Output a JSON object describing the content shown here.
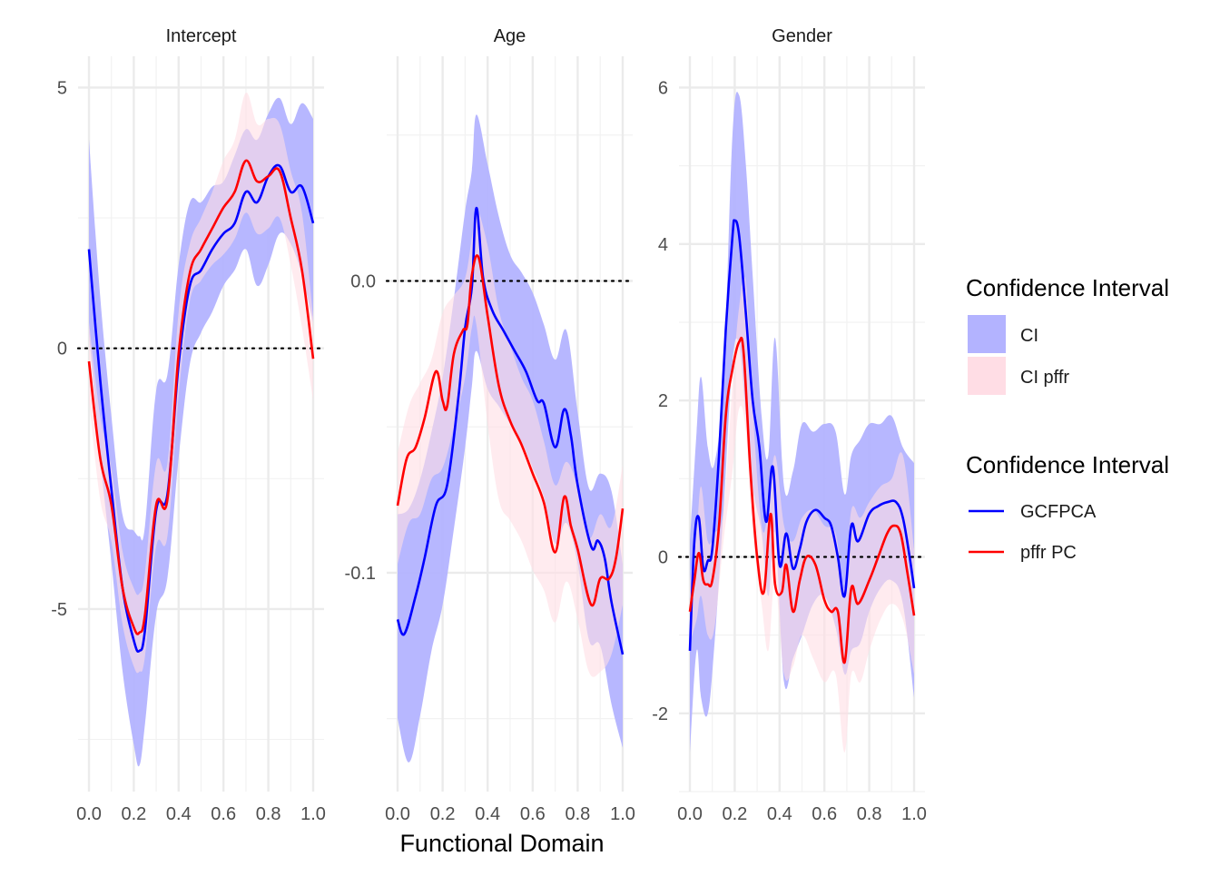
{
  "chart_data": [
    {
      "type": "line",
      "title": "Intercept",
      "xlim": [
        0,
        1
      ],
      "ylim": [
        -8.5,
        5.6
      ],
      "x_ticks": [
        "0.0",
        "0.2",
        "0.4",
        "0.6",
        "0.8",
        "1.0"
      ],
      "y_ticks": [
        5,
        0,
        -5
      ],
      "y_tick_labels": [
        "5",
        "0",
        "-5"
      ],
      "y_minor": [
        2.5,
        -2.5,
        -7.5
      ],
      "reference_line": 0,
      "series": [
        {
          "name": "GCFPCA",
          "color": "#0000ff",
          "x": [
            0,
            0.05,
            0.1,
            0.15,
            0.2,
            0.225,
            0.25,
            0.3,
            0.35,
            0.4,
            0.45,
            0.5,
            0.55,
            0.6,
            0.65,
            0.7,
            0.75,
            0.8,
            0.85,
            0.9,
            0.95,
            1.0
          ],
          "y": [
            1.9,
            -0.6,
            -2.7,
            -4.6,
            -5.6,
            -5.8,
            -5.4,
            -3.1,
            -2.8,
            -0.3,
            1.2,
            1.5,
            1.9,
            2.2,
            2.4,
            3.0,
            2.8,
            3.3,
            3.5,
            3.0,
            3.1,
            2.4
          ]
        },
        {
          "name": "pffr PC",
          "color": "#ff0000",
          "x": [
            0,
            0.05,
            0.1,
            0.15,
            0.2,
            0.225,
            0.25,
            0.3,
            0.35,
            0.4,
            0.45,
            0.5,
            0.55,
            0.6,
            0.65,
            0.7,
            0.75,
            0.8,
            0.85,
            0.9,
            0.95,
            1.0
          ],
          "y": [
            -0.25,
            -2.1,
            -3.0,
            -4.6,
            -5.35,
            -5.45,
            -5.1,
            -3.0,
            -2.9,
            -0.1,
            1.45,
            1.9,
            2.3,
            2.7,
            3.0,
            3.6,
            3.2,
            3.3,
            3.4,
            2.5,
            1.5,
            -0.2
          ]
        }
      ],
      "bands": [
        {
          "name": "CI",
          "color": "#b3b3ff",
          "x": [
            0,
            0.05,
            0.1,
            0.15,
            0.2,
            0.225,
            0.25,
            0.3,
            0.35,
            0.4,
            0.45,
            0.5,
            0.55,
            0.6,
            0.65,
            0.7,
            0.75,
            0.8,
            0.85,
            0.9,
            0.95,
            1.0
          ],
          "lower": [
            0.3,
            -2.1,
            -4.1,
            -6.2,
            -7.6,
            -8.0,
            -7.2,
            -5.1,
            -4.4,
            -2.1,
            -0.3,
            0.3,
            0.7,
            1.2,
            1.5,
            1.9,
            1.2,
            1.6,
            2.2,
            2.0,
            1.4,
            0.5
          ],
          "upper": [
            4.0,
            1.0,
            -1.3,
            -3.2,
            -3.5,
            -3.6,
            -3.4,
            -0.8,
            -0.5,
            1.6,
            2.8,
            2.8,
            3.1,
            3.2,
            3.7,
            4.2,
            4.0,
            4.5,
            4.8,
            4.3,
            4.7,
            4.4
          ]
        },
        {
          "name": "CI pffr",
          "color": "#ffdde5",
          "x": [
            0,
            0.05,
            0.1,
            0.15,
            0.2,
            0.225,
            0.25,
            0.3,
            0.35,
            0.4,
            0.45,
            0.5,
            0.55,
            0.6,
            0.65,
            0.7,
            0.75,
            0.8,
            0.85,
            0.9,
            0.95,
            1.0
          ],
          "lower": [
            -1.0,
            -2.9,
            -3.7,
            -5.3,
            -6.1,
            -6.2,
            -5.9,
            -3.8,
            -3.6,
            -0.9,
            0.9,
            1.3,
            1.6,
            1.8,
            2.1,
            2.6,
            2.2,
            2.3,
            2.5,
            1.6,
            0.4,
            -1.0
          ],
          "upper": [
            0.5,
            -1.3,
            -2.3,
            -3.9,
            -4.6,
            -4.7,
            -4.3,
            -2.2,
            -2.2,
            0.7,
            2.0,
            2.5,
            3.0,
            3.6,
            4.0,
            4.9,
            4.3,
            4.4,
            4.3,
            3.4,
            2.6,
            0.6
          ]
        }
      ]
    },
    {
      "type": "line",
      "title": "Age",
      "xlim": [
        0,
        1
      ],
      "ylim": [
        -0.175,
        0.077
      ],
      "x_ticks": [
        "0.0",
        "0.2",
        "0.4",
        "0.6",
        "0.8",
        "1.0"
      ],
      "y_ticks": [
        0.0,
        -0.1
      ],
      "y_tick_labels": [
        "0.0",
        "-0.1"
      ],
      "y_minor": [
        0.05,
        -0.05,
        -0.15
      ],
      "reference_line": 0,
      "series": [
        {
          "name": "GCFPCA",
          "color": "#0000ff",
          "x": [
            0,
            0.03,
            0.08,
            0.12,
            0.17,
            0.22,
            0.27,
            0.3,
            0.33,
            0.35,
            0.38,
            0.42,
            0.47,
            0.52,
            0.57,
            0.62,
            0.65,
            0.7,
            0.74,
            0.77,
            0.8,
            0.86,
            0.89,
            0.92,
            0.95,
            1.0
          ],
          "y": [
            -0.116,
            -0.121,
            -0.108,
            -0.095,
            -0.077,
            -0.07,
            -0.04,
            -0.016,
            -0.002,
            0.025,
            0.001,
            -0.01,
            -0.017,
            -0.024,
            -0.031,
            -0.041,
            -0.042,
            -0.057,
            -0.044,
            -0.053,
            -0.07,
            -0.091,
            -0.089,
            -0.095,
            -0.11,
            -0.128
          ]
        },
        {
          "name": "pffr PC",
          "color": "#ff0000",
          "x": [
            0,
            0.04,
            0.08,
            0.12,
            0.17,
            0.2,
            0.22,
            0.25,
            0.29,
            0.31,
            0.33,
            0.36,
            0.4,
            0.45,
            0.5,
            0.55,
            0.6,
            0.65,
            0.7,
            0.74,
            0.77,
            0.8,
            0.86,
            0.9,
            0.94,
            0.97,
            1.0
          ],
          "y": [
            -0.077,
            -0.061,
            -0.057,
            -0.047,
            -0.031,
            -0.041,
            -0.043,
            -0.025,
            -0.017,
            -0.015,
            0.002,
            0.008,
            -0.012,
            -0.036,
            -0.048,
            -0.056,
            -0.066,
            -0.076,
            -0.093,
            -0.074,
            -0.084,
            -0.092,
            -0.111,
            -0.102,
            -0.102,
            -0.095,
            -0.078
          ]
        }
      ],
      "bands": [
        {
          "name": "CI",
          "color": "#b3b3ff",
          "x": [
            0,
            0.05,
            0.1,
            0.15,
            0.2,
            0.25,
            0.3,
            0.33,
            0.35,
            0.4,
            0.45,
            0.5,
            0.55,
            0.6,
            0.65,
            0.7,
            0.75,
            0.8,
            0.85,
            0.9,
            0.95,
            1.0
          ],
          "lower": [
            -0.15,
            -0.165,
            -0.149,
            -0.127,
            -0.111,
            -0.085,
            -0.057,
            -0.036,
            -0.024,
            -0.037,
            -0.043,
            -0.049,
            -0.055,
            -0.064,
            -0.074,
            -0.09,
            -0.083,
            -0.097,
            -0.123,
            -0.125,
            -0.145,
            -0.16
          ],
          "upper": [
            -0.08,
            -0.078,
            -0.068,
            -0.052,
            -0.033,
            -0.006,
            0.024,
            0.038,
            0.057,
            0.04,
            0.022,
            0.009,
            0.003,
            -0.004,
            -0.015,
            -0.027,
            -0.017,
            -0.045,
            -0.071,
            -0.066,
            -0.072,
            -0.097
          ]
        },
        {
          "name": "CI pffr",
          "color": "#ffdde5",
          "x": [
            0,
            0.05,
            0.1,
            0.15,
            0.2,
            0.25,
            0.3,
            0.33,
            0.35,
            0.4,
            0.45,
            0.5,
            0.55,
            0.6,
            0.65,
            0.7,
            0.75,
            0.8,
            0.85,
            0.9,
            0.95,
            1.0
          ],
          "lower": [
            -0.097,
            -0.083,
            -0.08,
            -0.068,
            -0.064,
            -0.05,
            -0.033,
            -0.016,
            -0.015,
            -0.049,
            -0.075,
            -0.082,
            -0.089,
            -0.099,
            -0.106,
            -0.117,
            -0.103,
            -0.116,
            -0.134,
            -0.134,
            -0.128,
            -0.111
          ],
          "upper": [
            -0.059,
            -0.043,
            -0.035,
            -0.027,
            -0.011,
            -0.005,
            0.001,
            0.015,
            0.025,
            0.012,
            -0.01,
            -0.022,
            -0.033,
            -0.041,
            -0.055,
            -0.07,
            -0.062,
            -0.071,
            -0.088,
            -0.08,
            -0.084,
            -0.063
          ]
        }
      ]
    },
    {
      "type": "line",
      "title": "Gender",
      "xlim": [
        0,
        1
      ],
      "ylim": [
        -3.0,
        6.4
      ],
      "x_ticks": [
        "0.0",
        "0.2",
        "0.4",
        "0.6",
        "0.8",
        "1.0"
      ],
      "y_ticks": [
        6,
        4,
        2,
        0,
        -2
      ],
      "y_tick_labels": [
        "6",
        "4",
        "2",
        "0",
        "-2"
      ],
      "y_minor": [
        5,
        3,
        1,
        -1,
        -3
      ],
      "reference_line": 0,
      "series": [
        {
          "name": "GCFPCA",
          "color": "#0000ff",
          "x": [
            0,
            0.02,
            0.04,
            0.06,
            0.08,
            0.1,
            0.13,
            0.16,
            0.19,
            0.2,
            0.22,
            0.25,
            0.28,
            0.31,
            0.34,
            0.37,
            0.4,
            0.43,
            0.46,
            0.49,
            0.52,
            0.56,
            0.6,
            0.63,
            0.66,
            0.69,
            0.72,
            0.75,
            0.8,
            0.84,
            0.88,
            0.92,
            0.95,
            0.98,
            1.0
          ],
          "y": [
            -1.2,
            0.2,
            0.5,
            -0.15,
            -0.05,
            0.1,
            1.3,
            2.9,
            4.1,
            4.3,
            4.1,
            3.1,
            2.0,
            1.4,
            0.45,
            1.15,
            -0.1,
            0.3,
            -0.15,
            0.1,
            0.45,
            0.6,
            0.5,
            0.4,
            0.0,
            -0.5,
            0.4,
            0.2,
            0.55,
            0.65,
            0.7,
            0.7,
            0.5,
            0.0,
            -0.4
          ]
        },
        {
          "name": "pffr PC",
          "color": "#ff0000",
          "x": [
            0,
            0.02,
            0.04,
            0.06,
            0.08,
            0.1,
            0.13,
            0.16,
            0.19,
            0.22,
            0.24,
            0.27,
            0.3,
            0.33,
            0.36,
            0.38,
            0.41,
            0.43,
            0.46,
            0.49,
            0.52,
            0.56,
            0.6,
            0.63,
            0.66,
            0.69,
            0.72,
            0.75,
            0.8,
            0.84,
            0.88,
            0.91,
            0.94,
            0.97,
            1.0
          ],
          "y": [
            -0.7,
            -0.3,
            0.05,
            -0.3,
            -0.35,
            -0.3,
            0.4,
            1.8,
            2.4,
            2.75,
            2.6,
            1.1,
            0.0,
            -0.45,
            0.55,
            -0.35,
            -0.45,
            -0.1,
            -0.7,
            -0.3,
            0.0,
            -0.1,
            -0.55,
            -0.7,
            -0.7,
            -1.35,
            -0.4,
            -0.6,
            -0.3,
            0.0,
            0.3,
            0.4,
            0.3,
            -0.2,
            -0.75
          ]
        }
      ],
      "bands": [
        {
          "name": "CI",
          "color": "#b3b3ff",
          "x": [
            0,
            0.03,
            0.05,
            0.08,
            0.11,
            0.15,
            0.19,
            0.22,
            0.25,
            0.28,
            0.32,
            0.35,
            0.38,
            0.42,
            0.46,
            0.5,
            0.55,
            0.6,
            0.65,
            0.69,
            0.72,
            0.76,
            0.8,
            0.85,
            0.9,
            0.95,
            1.0
          ],
          "lower": [
            -2.5,
            -1.2,
            -1.8,
            -2.0,
            -1.1,
            0.6,
            2.5,
            2.7,
            1.8,
            0.9,
            0.3,
            -0.5,
            0.3,
            -1.6,
            -1.3,
            -1.0,
            -0.6,
            -0.5,
            -0.9,
            -1.5,
            -1.2,
            -1.1,
            -0.7,
            -0.4,
            -0.3,
            -0.6,
            -1.8
          ],
          "upper": [
            0.2,
            1.6,
            2.3,
            1.4,
            1.2,
            2.3,
            5.4,
            5.9,
            5.0,
            3.6,
            1.8,
            1.3,
            2.8,
            0.9,
            1.1,
            1.7,
            1.6,
            1.7,
            1.6,
            0.8,
            1.3,
            1.5,
            1.7,
            1.7,
            1.8,
            1.4,
            1.2
          ]
        },
        {
          "name": "CI pffr",
          "color": "#ffdde5",
          "x": [
            0,
            0.03,
            0.05,
            0.08,
            0.11,
            0.15,
            0.19,
            0.22,
            0.25,
            0.28,
            0.32,
            0.35,
            0.38,
            0.42,
            0.46,
            0.5,
            0.55,
            0.6,
            0.65,
            0.69,
            0.72,
            0.76,
            0.8,
            0.85,
            0.9,
            0.95,
            1.0
          ],
          "lower": [
            -1.1,
            -0.8,
            -0.5,
            -1.0,
            -0.9,
            0.2,
            1.1,
            1.9,
            1.6,
            0.3,
            -0.6,
            -1.2,
            -0.3,
            -1.5,
            -1.4,
            -1.0,
            -1.3,
            -1.6,
            -1.5,
            -2.5,
            -1.5,
            -1.6,
            -1.2,
            -0.8,
            -0.6,
            -0.8,
            -1.5
          ],
          "upper": [
            -0.3,
            0.3,
            0.9,
            0.2,
            0.3,
            0.6,
            2.2,
            3.2,
            3.5,
            1.9,
            0.4,
            0.6,
            1.3,
            0.4,
            0.2,
            0.5,
            0.6,
            0.4,
            0.3,
            -0.4,
            0.6,
            0.5,
            0.7,
            0.9,
            1.0,
            1.3,
            0.1
          ]
        }
      ]
    }
  ],
  "x_axis_title": "Functional Domain",
  "legend_fill": {
    "title": "Confidence Interval",
    "items": [
      {
        "label": "CI",
        "color": "#b3b3ff"
      },
      {
        "label": "CI pffr",
        "color": "#ffdde5"
      }
    ]
  },
  "legend_line": {
    "title": "Confidence Interval",
    "items": [
      {
        "label": "GCFPCA",
        "color": "#0000ff"
      },
      {
        "label": "pffr PC",
        "color": "#ff0000"
      }
    ]
  }
}
